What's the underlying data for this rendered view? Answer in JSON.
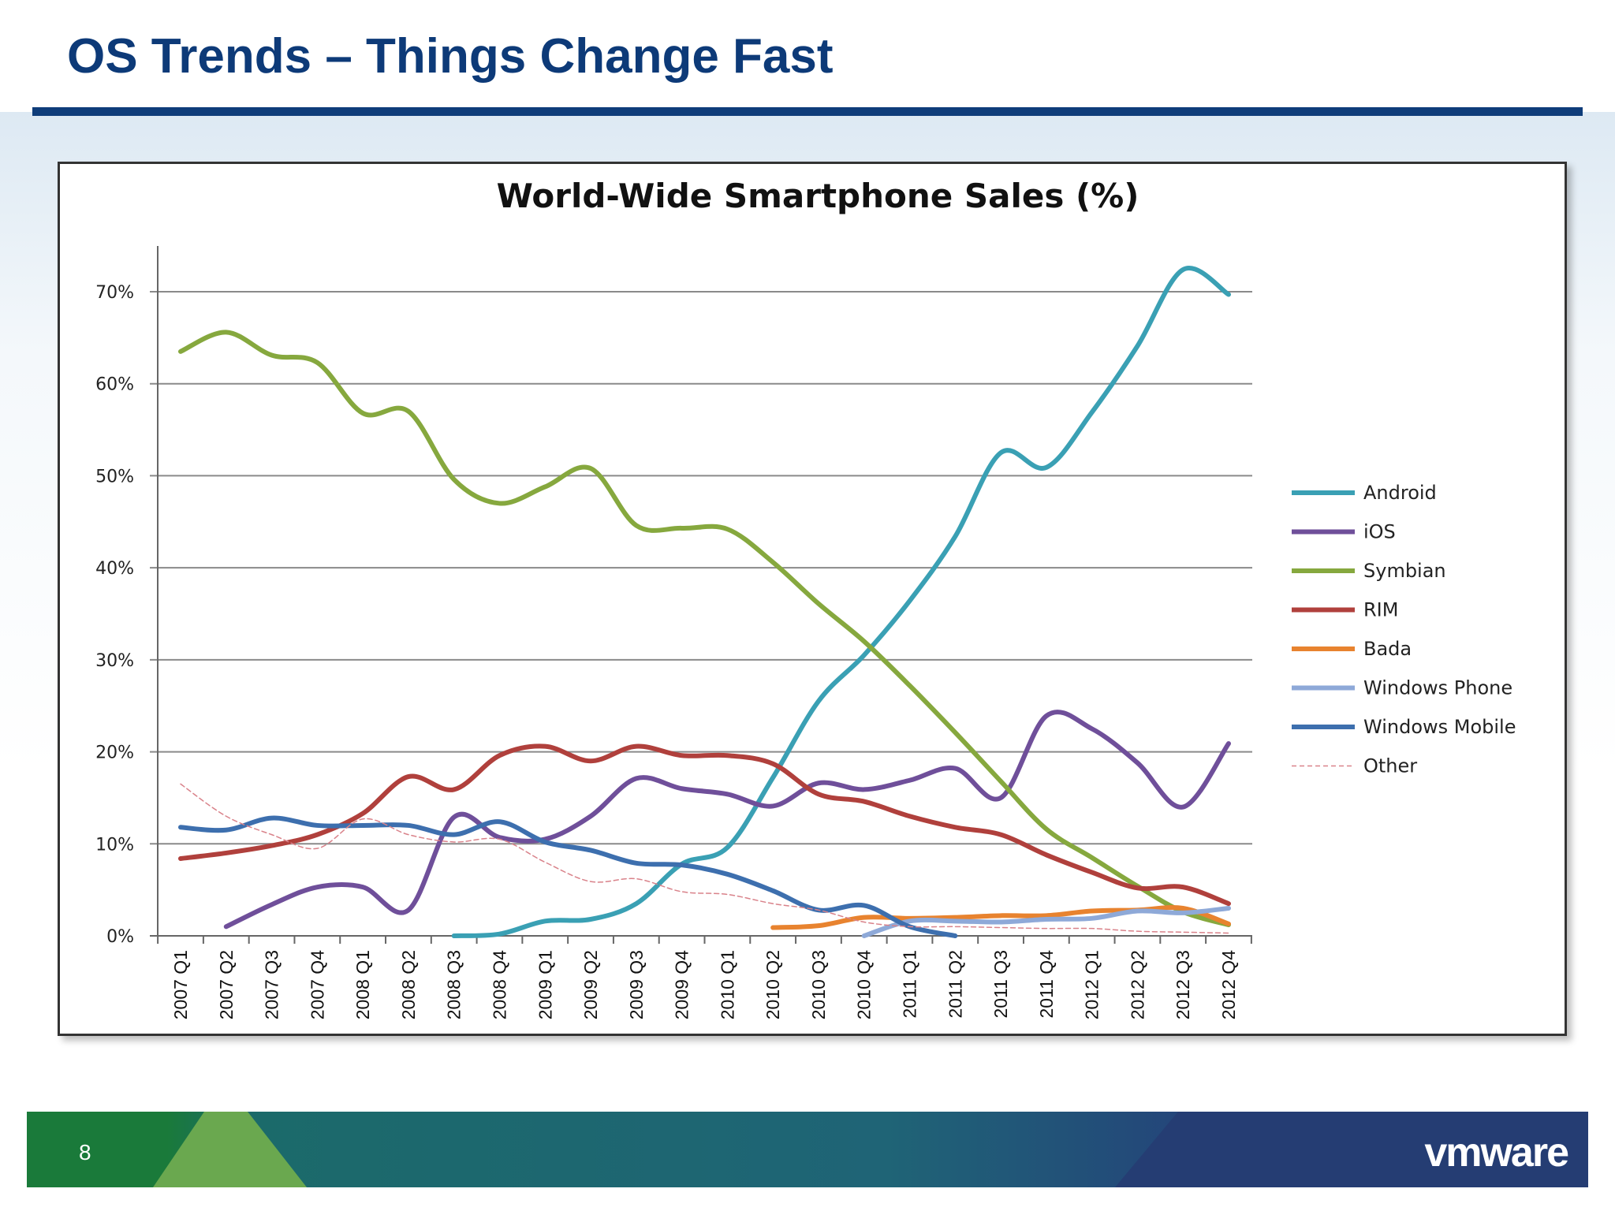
{
  "slide": {
    "title": "OS Trends – Things Change Fast",
    "page_number": "8",
    "logo_text": "vmware"
  },
  "chart_data": {
    "type": "line",
    "title": "World-Wide Smartphone Sales (%)",
    "xlabel": "",
    "ylabel": "",
    "ylim": [
      0,
      70
    ],
    "yticks": [
      "0%",
      "10%",
      "20%",
      "30%",
      "40%",
      "50%",
      "60%",
      "70%"
    ],
    "grid": true,
    "legend_position": "right",
    "categories": [
      "2007 Q1",
      "2007 Q2",
      "2007 Q3",
      "2007 Q4",
      "2008 Q1",
      "2008 Q2",
      "2008 Q3",
      "2008 Q4",
      "2009 Q1",
      "2009 Q2",
      "2009 Q3",
      "2009 Q4",
      "2010 Q1",
      "2010 Q2",
      "2010 Q3",
      "2010 Q4",
      "2011 Q1",
      "2011 Q2",
      "2011 Q3",
      "2011 Q4",
      "2012 Q1",
      "2012 Q2",
      "2012 Q3",
      "2012 Q4"
    ],
    "series": [
      {
        "name": "Android",
        "color": "#3aa0b4",
        "dashed": false,
        "values": [
          null,
          null,
          null,
          null,
          null,
          null,
          0,
          0.2,
          1.6,
          1.8,
          3.5,
          7.8,
          9.6,
          17.2,
          25.5,
          30.5,
          36.4,
          43.4,
          52.5,
          50.9,
          56.9,
          64.1,
          72.4,
          69.7
        ]
      },
      {
        "name": "iOS",
        "color": "#6f4f9a",
        "dashed": false,
        "values": [
          null,
          1.0,
          3.4,
          5.3,
          5.3,
          2.8,
          12.9,
          10.7,
          10.5,
          13.0,
          17.1,
          16.0,
          15.4,
          14.1,
          16.6,
          15.9,
          16.9,
          18.2,
          15.0,
          23.9,
          22.5,
          18.8,
          14.0,
          20.9
        ]
      },
      {
        "name": "Symbian",
        "color": "#86a83e",
        "dashed": false,
        "values": [
          63.5,
          65.6,
          63.1,
          62.3,
          56.8,
          57.0,
          49.6,
          47.0,
          48.8,
          50.8,
          44.6,
          44.3,
          44.2,
          40.6,
          36.1,
          32.0,
          27.2,
          22.1,
          16.8,
          11.6,
          8.5,
          5.4,
          2.6,
          1.2
        ]
      },
      {
        "name": "RIM",
        "color": "#b0403c",
        "dashed": false,
        "values": [
          8.4,
          9.0,
          9.8,
          11.0,
          13.3,
          17.3,
          15.9,
          19.6,
          20.6,
          19.0,
          20.6,
          19.6,
          19.6,
          18.7,
          15.4,
          14.6,
          13.0,
          11.8,
          11.0,
          8.8,
          6.9,
          5.2,
          5.3,
          3.5
        ]
      },
      {
        "name": "Bada",
        "color": "#e8832f",
        "dashed": false,
        "values": [
          null,
          null,
          null,
          null,
          null,
          null,
          null,
          null,
          null,
          null,
          null,
          null,
          null,
          0.9,
          1.1,
          2.0,
          1.9,
          2.0,
          2.2,
          2.2,
          2.7,
          2.8,
          3.0,
          1.3
        ]
      },
      {
        "name": "Windows Phone",
        "color": "#8ea9d8",
        "dashed": false,
        "values": [
          null,
          null,
          null,
          null,
          null,
          null,
          null,
          null,
          null,
          null,
          null,
          null,
          null,
          null,
          null,
          0,
          1.6,
          1.6,
          1.5,
          1.8,
          1.9,
          2.7,
          2.5,
          3.0
        ]
      },
      {
        "name": "Windows Mobile",
        "color": "#3d6fae",
        "dashed": false,
        "values": [
          11.8,
          11.5,
          12.8,
          12.0,
          12.0,
          12.0,
          11.0,
          12.4,
          10.2,
          9.3,
          7.9,
          7.7,
          6.7,
          4.9,
          2.8,
          3.3,
          1.0,
          0,
          null,
          null,
          null,
          null,
          null,
          null
        ]
      },
      {
        "name": "Other",
        "color": "#d9828a",
        "dashed": true,
        "values": [
          16.5,
          13.0,
          11.0,
          9.5,
          12.7,
          11.0,
          10.2,
          10.5,
          8.0,
          5.9,
          6.2,
          4.8,
          4.5,
          3.5,
          2.8,
          1.5,
          1.0,
          1.0,
          0.9,
          0.8,
          0.8,
          0.5,
          0.4,
          0.3
        ]
      }
    ]
  }
}
